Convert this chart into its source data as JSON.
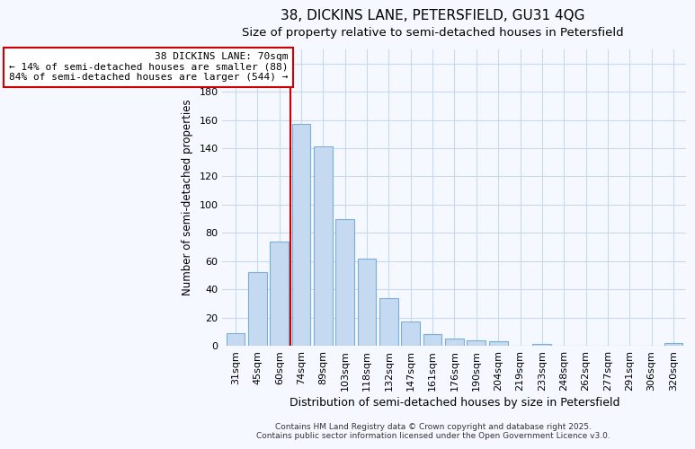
{
  "title_line1": "38, DICKINS LANE, PETERSFIELD, GU31 4QG",
  "title_line2": "Size of property relative to semi-detached houses in Petersfield",
  "categories": [
    "31sqm",
    "45sqm",
    "60sqm",
    "74sqm",
    "89sqm",
    "103sqm",
    "118sqm",
    "132sqm",
    "147sqm",
    "161sqm",
    "176sqm",
    "190sqm",
    "204sqm",
    "219sqm",
    "233sqm",
    "248sqm",
    "262sqm",
    "277sqm",
    "291sqm",
    "306sqm",
    "320sqm"
  ],
  "values": [
    9,
    52,
    74,
    157,
    141,
    90,
    62,
    34,
    17,
    8,
    5,
    4,
    3,
    0,
    1,
    0,
    0,
    0,
    0,
    0,
    2
  ],
  "bar_color": "#c5d9f0",
  "bar_edgecolor": "#7ab0d8",
  "redline_index": 3,
  "annotation_text": "38 DICKINS LANE: 70sqm\n← 14% of semi-detached houses are smaller (88)\n84% of semi-detached houses are larger (544) →",
  "xlabel": "Distribution of semi-detached houses by size in Petersfield",
  "ylabel": "Number of semi-detached properties",
  "ylim": [
    0,
    210
  ],
  "yticks": [
    0,
    20,
    40,
    60,
    80,
    100,
    120,
    140,
    160,
    180,
    200
  ],
  "footnote": "Contains HM Land Registry data © Crown copyright and database right 2025.\nContains public sector information licensed under the Open Government Licence v3.0.",
  "bg_color": "#f5f8fe",
  "plot_bg_color": "#f5f8fe",
  "grid_color": "#c8d8ee",
  "annotation_box_facecolor": "#ffffff",
  "annotation_box_edgecolor": "#cc0000",
  "redline_color": "#cc0000",
  "title_fontsize": 11,
  "subtitle_fontsize": 9.5,
  "xlabel_fontsize": 9,
  "ylabel_fontsize": 8.5,
  "tick_fontsize": 8,
  "annotation_fontsize": 8,
  "footnote_fontsize": 6.5
}
